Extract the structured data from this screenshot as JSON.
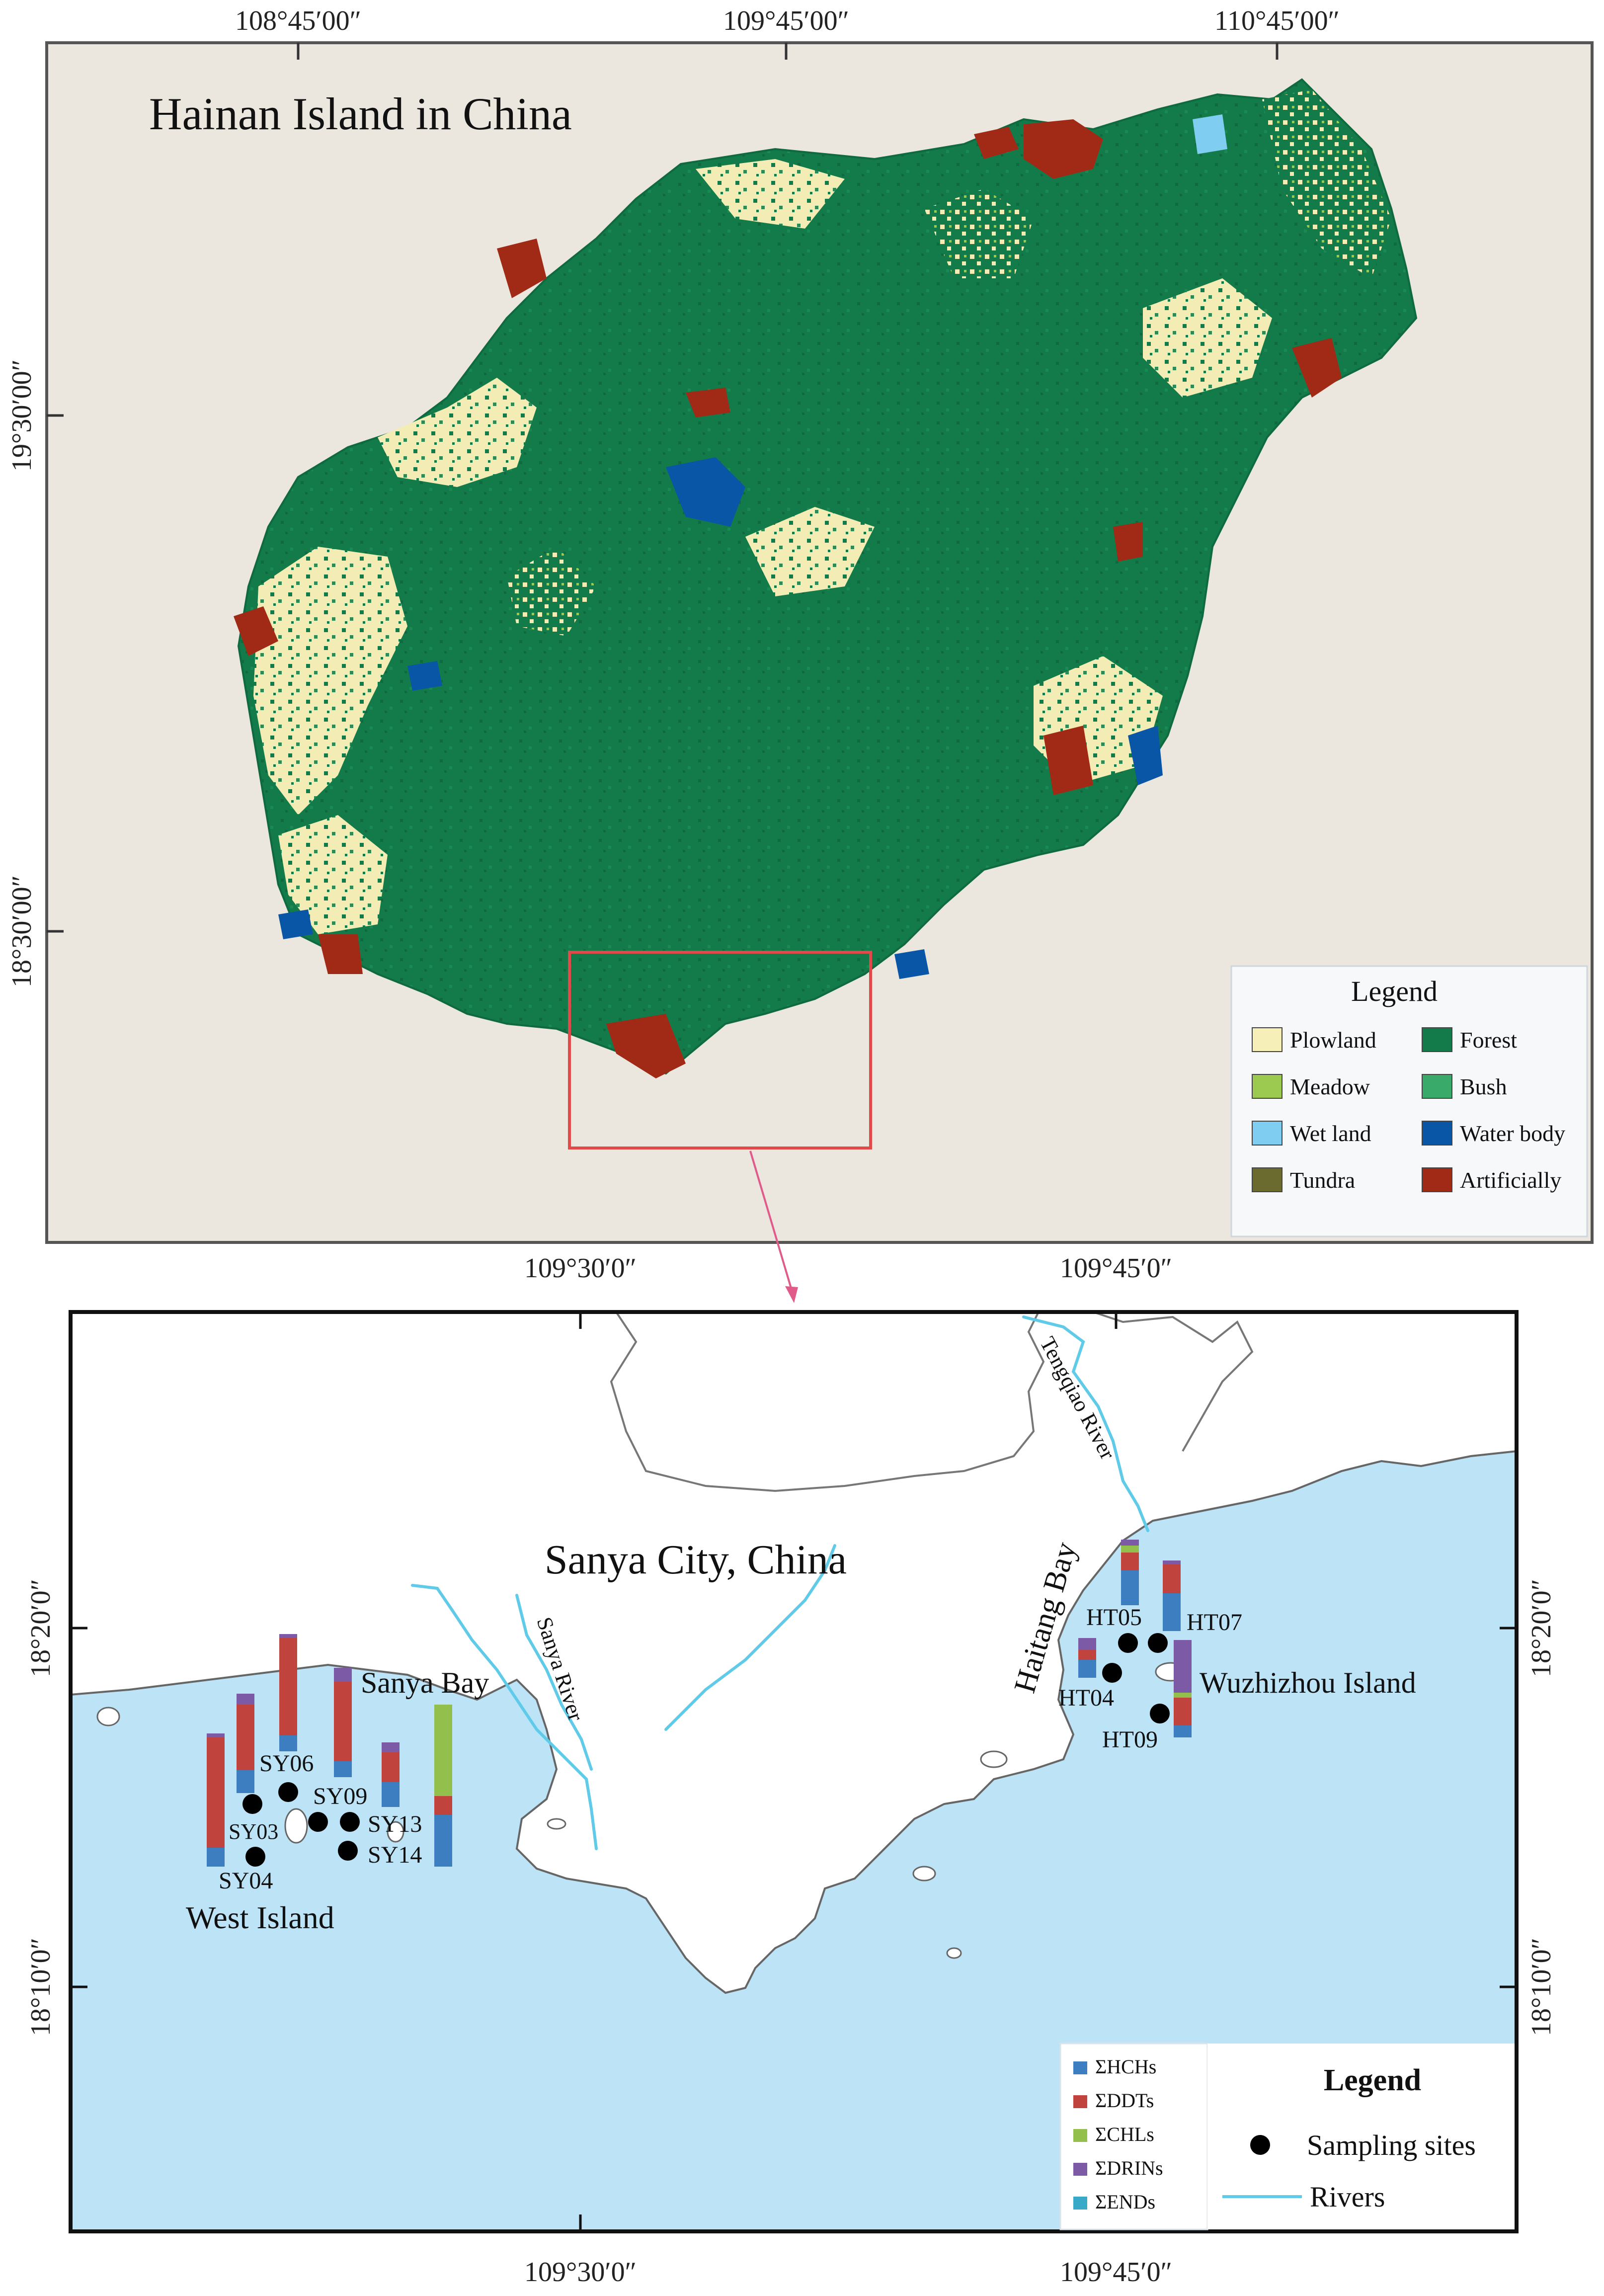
{
  "top_map": {
    "title": "Hainan Island in China",
    "top_coords": [
      "108°45′00″",
      "109°45′00″",
      "110°45′00″"
    ],
    "left_coords": [
      "19°30′00″",
      "18°30′00″"
    ],
    "legend": {
      "title": "Legend",
      "items": [
        {
          "label": "Plowland",
          "color": "#f7efb8"
        },
        {
          "label": "Forest",
          "color": "#137a4a"
        },
        {
          "label": "Meadow",
          "color": "#9cc94f"
        },
        {
          "label": "Bush",
          "color": "#3aaa6a"
        },
        {
          "label": "Wet land",
          "color": "#7fcdf0"
        },
        {
          "label": "Water body",
          "color": "#0a56a6"
        },
        {
          "label": "Tundra",
          "color": "#6b6b30"
        },
        {
          "label": "Artificially",
          "color": "#a12a16"
        }
      ]
    }
  },
  "bottom_map": {
    "title": "Sanya City, China",
    "top_coords": [
      "109°30′0″",
      "109°45′0″"
    ],
    "bottom_coords": [
      "109°30′0″",
      "109°45′0″"
    ],
    "left_coords": [
      "18°20′0″",
      "18°10′0″"
    ],
    "right_coords": [
      "18°20′0″",
      "18°10′0″"
    ],
    "places": {
      "sanya_bay": "Sanya Bay",
      "west_island": "West Island",
      "sanya_river": "Sanya River",
      "haitang_bay": "Haitang Bay",
      "tengqiao_river": "Tengqiao River",
      "wuzhizhou": "Wuzhizhou Island"
    },
    "sites": [
      {
        "id": "SY03",
        "label": "SY03"
      },
      {
        "id": "SY04",
        "label": "SY04"
      },
      {
        "id": "SY06",
        "label": "SY06"
      },
      {
        "id": "SY09",
        "label": "SY09"
      },
      {
        "id": "SY13",
        "label": "SY13"
      },
      {
        "id": "SY14",
        "label": "SY14"
      },
      {
        "id": "HT04",
        "label": "HT04"
      },
      {
        "id": "HT05",
        "label": "HT05"
      },
      {
        "id": "HT07",
        "label": "HT07"
      },
      {
        "id": "HT09",
        "label": "HT09"
      }
    ],
    "compound_legend": [
      {
        "label": "ΣHCHs",
        "color": "#3d7ec1"
      },
      {
        "label": "ΣDDTs",
        "color": "#c0433d"
      },
      {
        "label": "ΣCHLs",
        "color": "#93bf4c"
      },
      {
        "label": "ΣDRINs",
        "color": "#7c5aa6"
      },
      {
        "label": "ΣENDs",
        "color": "#39a9c8"
      }
    ],
    "legend": {
      "title": "Legend",
      "sampling": "Sampling sites",
      "rivers": "Rivers"
    }
  }
}
